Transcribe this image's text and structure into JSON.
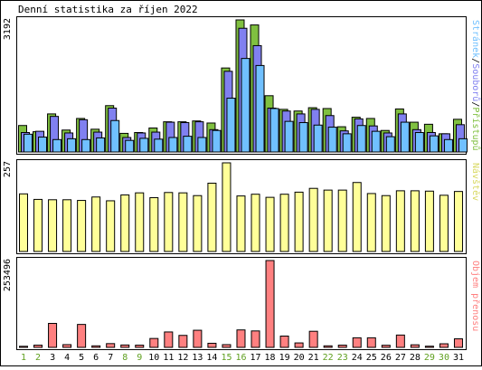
{
  "chart_data": {
    "type": "bar",
    "title": "Denní statistika za říjen 2022",
    "categories": [
      "1",
      "2",
      "3",
      "4",
      "5",
      "6",
      "7",
      "8",
      "9",
      "10",
      "11",
      "12",
      "13",
      "14",
      "15",
      "16",
      "17",
      "18",
      "19",
      "20",
      "21",
      "22",
      "23",
      "24",
      "25",
      "26",
      "27",
      "28",
      "29",
      "30",
      "31"
    ],
    "weekend_days": [
      "1",
      "2",
      "8",
      "9",
      "15",
      "16",
      "22",
      "23",
      "29",
      "30"
    ],
    "colors": {
      "pristupu": "#80c040",
      "souboru": "#8080f0",
      "stranek": "#70c0ff",
      "navstev": "#ffff99",
      "objem": "#ff8080",
      "weekend_label": "#60a020",
      "frame": "#000000"
    },
    "panels": [
      {
        "id": "traffic",
        "ymax_label": "3192",
        "ymax": 3192,
        "legend_parts": [
          {
            "text": "Stránek",
            "color": "#70c0ff"
          },
          {
            "text": "/",
            "color": "#000000"
          },
          {
            "text": "Souborů",
            "color": "#8080f0"
          },
          {
            "text": "/",
            "color": "#000000"
          },
          {
            "text": "Přístupů",
            "color": "#80c040"
          }
        ],
        "series": [
          {
            "name": "Přístupů",
            "values": [
              640,
              490,
              920,
              530,
              810,
              550,
              1120,
              450,
              470,
              580,
              730,
              730,
              750,
              700,
              2030,
              3192,
              3070,
              1360,
              1030,
              990,
              1070,
              1050,
              610,
              840,
              810,
              520,
              1040,
              720,
              670,
              440,
              790
            ]
          },
          {
            "name": "Souborů",
            "values": [
              470,
              500,
              860,
              460,
              780,
              480,
              1060,
              350,
              460,
              480,
              720,
              710,
              730,
              540,
              1950,
              2990,
              2570,
              1060,
              990,
              920,
              1030,
              880,
              510,
              800,
              630,
              460,
              920,
              540,
              470,
              440,
              660
            ]
          },
          {
            "name": "Stránek",
            "values": [
              430,
              360,
              300,
              320,
              300,
              340,
              760,
              280,
              330,
              310,
              350,
              380,
              350,
              520,
              1300,
              2260,
              2090,
              1050,
              740,
              710,
              650,
              600,
              440,
              640,
              500,
              370,
              720,
              470,
              390,
              300,
              320
            ]
          }
        ]
      },
      {
        "id": "visits",
        "ymax_label": "257",
        "ymax": 257,
        "legend_parts": [
          {
            "text": "Návštěv",
            "color": "#d8d860"
          }
        ],
        "series": [
          {
            "name": "Návštěv",
            "values": [
              167,
              151,
              150,
              150,
              148,
              158,
              147,
              164,
              170,
              156,
              171,
              170,
              162,
              198,
              257,
              161,
              166,
              157,
              166,
              172,
              183,
              178,
              178,
              200,
              168,
              162,
              176,
              176,
              175,
              163,
              174
            ]
          }
        ]
      },
      {
        "id": "transfer",
        "ymax_label": "253496",
        "ymax": 253496,
        "legend_parts": [
          {
            "text": "Objem přenosu",
            "color": "#ff8080"
          }
        ],
        "series": [
          {
            "name": "Objem přenosu",
            "values": [
              3200,
              6500,
              70000,
              8000,
              67000,
              4500,
              11000,
              7000,
              6500,
              26000,
              45000,
              35000,
              50000,
              12000,
              8000,
              51000,
              48000,
              253496,
              33000,
              13000,
              47000,
              4500,
              6500,
              28000,
              28000,
              6200,
              36000,
              7500,
              3500,
              10500,
              25000
            ]
          }
        ]
      }
    ]
  }
}
